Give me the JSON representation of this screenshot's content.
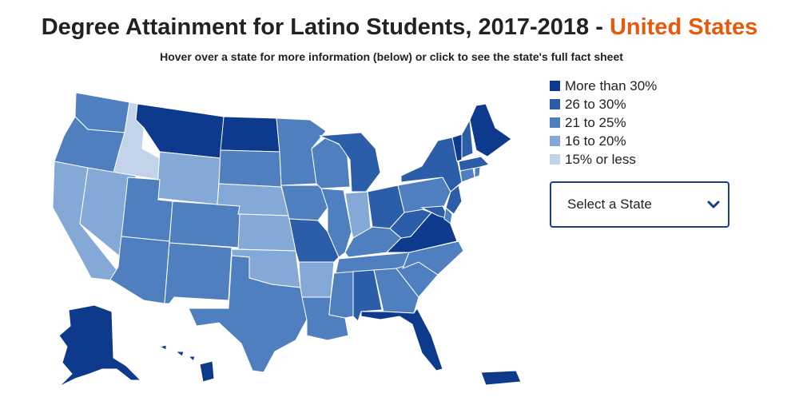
{
  "header": {
    "title_main": "Degree Attainment for Latino Students, 2017-2018 - ",
    "title_place": "United States",
    "subtitle": "Hover over a state for more information (below) or click to see the state's full fact sheet"
  },
  "legend": {
    "items": [
      {
        "label": "More than 30%",
        "color": "#0d3a8c"
      },
      {
        "label": "26 to 30%",
        "color": "#2c5da8"
      },
      {
        "label": "21 to 25%",
        "color": "#4f7fbe"
      },
      {
        "label": "16 to 20%",
        "color": "#85a9d6"
      },
      {
        "label": "15% or less",
        "color": "#c3d3ea"
      }
    ]
  },
  "selector": {
    "label": "Select a State",
    "icon": "chevron-down-icon"
  },
  "map": {
    "states": [
      {
        "abbr": "WA",
        "bucket": 2
      },
      {
        "abbr": "OR",
        "bucket": 2
      },
      {
        "abbr": "CA",
        "bucket": 3
      },
      {
        "abbr": "ID",
        "bucket": 4
      },
      {
        "abbr": "NV",
        "bucket": 3
      },
      {
        "abbr": "MT",
        "bucket": 0
      },
      {
        "abbr": "WY",
        "bucket": 3
      },
      {
        "abbr": "UT",
        "bucket": 2
      },
      {
        "abbr": "AZ",
        "bucket": 2
      },
      {
        "abbr": "CO",
        "bucket": 2
      },
      {
        "abbr": "NM",
        "bucket": 2
      },
      {
        "abbr": "ND",
        "bucket": 0
      },
      {
        "abbr": "SD",
        "bucket": 2
      },
      {
        "abbr": "NE",
        "bucket": 3
      },
      {
        "abbr": "KS",
        "bucket": 3
      },
      {
        "abbr": "OK",
        "bucket": 3
      },
      {
        "abbr": "TX",
        "bucket": 2
      },
      {
        "abbr": "MN",
        "bucket": 2
      },
      {
        "abbr": "IA",
        "bucket": 2
      },
      {
        "abbr": "MO",
        "bucket": 1
      },
      {
        "abbr": "AR",
        "bucket": 3
      },
      {
        "abbr": "LA",
        "bucket": 2
      },
      {
        "abbr": "WI",
        "bucket": 2
      },
      {
        "abbr": "IL",
        "bucket": 2
      },
      {
        "abbr": "MI",
        "bucket": 1
      },
      {
        "abbr": "IN",
        "bucket": 3
      },
      {
        "abbr": "OH",
        "bucket": 1
      },
      {
        "abbr": "KY",
        "bucket": 2
      },
      {
        "abbr": "TN",
        "bucket": 2
      },
      {
        "abbr": "MS",
        "bucket": 2
      },
      {
        "abbr": "AL",
        "bucket": 1
      },
      {
        "abbr": "GA",
        "bucket": 2
      },
      {
        "abbr": "FL",
        "bucket": 0
      },
      {
        "abbr": "SC",
        "bucket": 2
      },
      {
        "abbr": "NC",
        "bucket": 2
      },
      {
        "abbr": "VA",
        "bucket": 0
      },
      {
        "abbr": "WV",
        "bucket": 1
      },
      {
        "abbr": "PA",
        "bucket": 2
      },
      {
        "abbr": "NY",
        "bucket": 1
      },
      {
        "abbr": "NJ",
        "bucket": 1
      },
      {
        "abbr": "DE",
        "bucket": 2
      },
      {
        "abbr": "MD",
        "bucket": 1
      },
      {
        "abbr": "CT",
        "bucket": 2
      },
      {
        "abbr": "RI",
        "bucket": 2
      },
      {
        "abbr": "MA",
        "bucket": 1
      },
      {
        "abbr": "VT",
        "bucket": 0
      },
      {
        "abbr": "NH",
        "bucket": 1
      },
      {
        "abbr": "ME",
        "bucket": 0
      },
      {
        "abbr": "AK",
        "bucket": 0
      },
      {
        "abbr": "HI",
        "bucket": 0
      },
      {
        "abbr": "PR",
        "bucket": 0
      }
    ]
  }
}
